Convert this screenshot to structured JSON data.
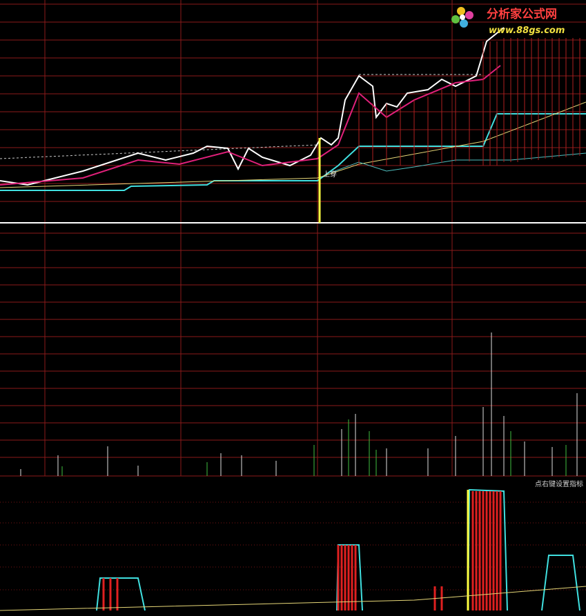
{
  "logo": {
    "title": "分析家公式网",
    "url": "www.88gs.com"
  },
  "annotations": {
    "cross": "上穿"
  },
  "indicator_hint": "点右键设置指标"
}
